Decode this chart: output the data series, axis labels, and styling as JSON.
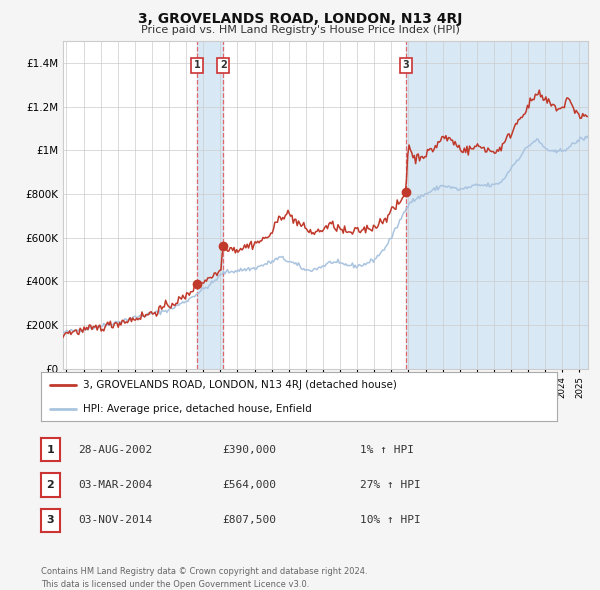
{
  "title": "3, GROVELANDS ROAD, LONDON, N13 4RJ",
  "subtitle": "Price paid vs. HM Land Registry's House Price Index (HPI)",
  "legend_line1": "3, GROVELANDS ROAD, LONDON, N13 4RJ (detached house)",
  "legend_line2": "HPI: Average price, detached house, Enfield",
  "footer": "Contains HM Land Registry data © Crown copyright and database right 2024.\nThis data is licensed under the Open Government Licence v3.0.",
  "transactions": [
    {
      "num": 1,
      "date": "28-AUG-2002",
      "price": "£390,000",
      "hpi": "1% ↑ HPI",
      "y_val": 390000
    },
    {
      "num": 2,
      "date": "03-MAR-2004",
      "price": "£564,000",
      "hpi": "27% ↑ HPI",
      "y_val": 564000
    },
    {
      "num": 3,
      "date": "03-NOV-2014",
      "price": "£807,500",
      "hpi": "10% ↑ HPI",
      "y_val": 807500
    }
  ],
  "transaction_dates_decimal": [
    2002.65,
    2004.17,
    2014.84
  ],
  "hpi_color": "#aac4e0",
  "price_color": "#c0392b",
  "dot_color": "#c0392b",
  "shading_color": "#d8e8f5",
  "vline_color": "#e05050",
  "background_color": "#f5f5f5",
  "plot_bg": "#ffffff",
  "ylim": [
    0,
    1500000
  ],
  "yticks": [
    0,
    200000,
    400000,
    600000,
    800000,
    1000000,
    1200000,
    1400000
  ],
  "xlim_start": 1994.8,
  "xlim_end": 2025.5
}
